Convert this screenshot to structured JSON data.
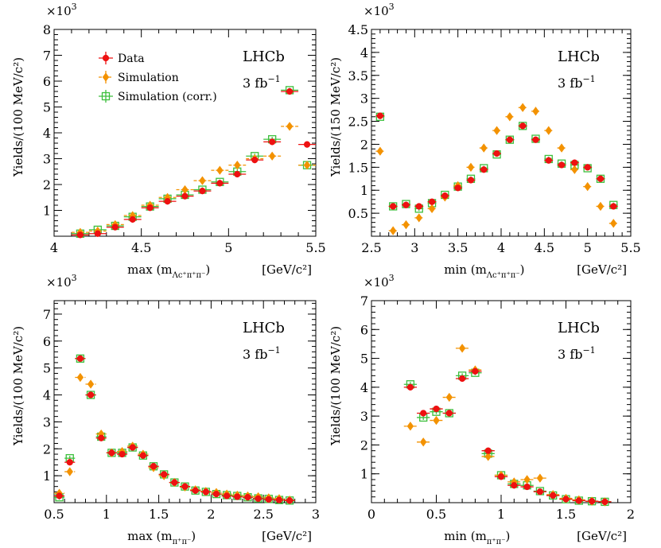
{
  "colors": {
    "data": "#ee1111",
    "sim": "#f39200",
    "simcorr": "#3cbf3c",
    "axis": "#000000"
  },
  "legend": {
    "data": "Data",
    "sim": "Simulation",
    "simcorr": "Simulation (corr.)"
  },
  "chart_data": [
    {
      "type": "scatter",
      "id": "p1",
      "lhcb": "LHCb",
      "lumi": "3  fb",
      "lumi_sup": "−1",
      "multiplier": "×10",
      "multiplier_sup": "3",
      "ylabel": "Yields/(100 MeV/c²)",
      "xlabel_main": "max (m",
      "xlabel_sub": "Λc⁺π⁺π⁻",
      "xlabel_close": ")",
      "xunit": "[GeV/c²]",
      "xlim": [
        4,
        5.5
      ],
      "ylim": [
        0,
        8
      ],
      "xticks": [
        4,
        4.5,
        5,
        5.5
      ],
      "xtick_labels": [
        "4",
        "4.5",
        "5",
        "5.5"
      ],
      "yticks": [
        1,
        2,
        3,
        4,
        5,
        6,
        7,
        8
      ],
      "ytick_labels": [
        "1",
        "2",
        "3",
        "4",
        "5",
        "6",
        "7",
        "8"
      ],
      "show_legend": true,
      "bin_width": 0.1,
      "series": [
        {
          "name": "Data",
          "x": [
            4.15,
            4.25,
            4.35,
            4.45,
            4.55,
            4.65,
            4.75,
            4.85,
            4.95,
            5.05,
            5.15,
            5.25,
            5.35,
            5.45
          ],
          "y": [
            0.05,
            0.1,
            0.35,
            0.65,
            1.1,
            1.35,
            1.55,
            1.75,
            2.05,
            2.4,
            2.95,
            3.65,
            5.6,
            3.55
          ]
        },
        {
          "name": "Simulation",
          "x": [
            4.15,
            4.25,
            4.35,
            4.45,
            4.55,
            4.65,
            4.75,
            4.85,
            4.95,
            5.05,
            5.15,
            5.25,
            5.35,
            5.45
          ],
          "y": [
            0.15,
            0.2,
            0.45,
            0.8,
            1.2,
            1.5,
            1.8,
            2.15,
            2.55,
            2.75,
            3.0,
            3.1,
            4.25,
            2.75
          ]
        },
        {
          "name": "Simulation (corr.)",
          "x": [
            4.15,
            4.25,
            4.35,
            4.45,
            4.55,
            4.65,
            4.75,
            4.85,
            4.95,
            5.05,
            5.15,
            5.25,
            5.35,
            5.45
          ],
          "y": [
            0.1,
            0.25,
            0.4,
            0.75,
            1.15,
            1.45,
            1.6,
            1.8,
            2.1,
            2.5,
            3.1,
            3.75,
            5.65,
            2.75
          ]
        }
      ]
    },
    {
      "type": "scatter",
      "id": "p2",
      "lhcb": "LHCb",
      "lumi": "3  fb",
      "lumi_sup": "−1",
      "multiplier": "×10",
      "multiplier_sup": "3",
      "ylabel": "Yields/(150 MeV/c²)",
      "xlabel_main": "min (m",
      "xlabel_sub": "Λc⁺π⁺π⁻",
      "xlabel_close": ")",
      "xunit": "[GeV/c²]",
      "xlim": [
        2.5,
        5.5
      ],
      "ylim": [
        0,
        4.5
      ],
      "xticks": [
        2.5,
        3,
        3.5,
        4,
        4.5,
        5,
        5.5
      ],
      "xtick_labels": [
        "2.5",
        "3",
        "3.5",
        "4",
        "4.5",
        "5",
        "5.5"
      ],
      "yticks": [
        0.5,
        1,
        1.5,
        2,
        2.5,
        3,
        3.5,
        4,
        4.5
      ],
      "ytick_labels": [
        "0.5",
        "1",
        "1.5",
        "2",
        "2.5",
        "3",
        "3.5",
        "4",
        "4.5"
      ],
      "show_legend": false,
      "bin_width": 0.1,
      "series": [
        {
          "name": "Data",
          "x": [
            2.6,
            2.75,
            2.9,
            3.05,
            3.2,
            3.35,
            3.5,
            3.65,
            3.8,
            3.95,
            4.1,
            4.25,
            4.4,
            4.55,
            4.7,
            4.85,
            5.0,
            5.15,
            5.3
          ],
          "y": [
            2.62,
            0.65,
            0.68,
            0.65,
            0.75,
            0.88,
            1.05,
            1.22,
            1.45,
            1.8,
            2.1,
            2.4,
            2.1,
            1.65,
            1.55,
            1.6,
            1.5,
            1.25,
            0.65
          ]
        },
        {
          "name": "Simulation",
          "x": [
            2.6,
            2.75,
            2.9,
            3.05,
            3.2,
            3.35,
            3.5,
            3.65,
            3.8,
            3.95,
            4.1,
            4.25,
            4.4,
            4.55,
            4.7,
            4.85,
            5.0,
            5.15,
            5.3
          ],
          "y": [
            1.85,
            0.12,
            0.25,
            0.4,
            0.6,
            0.85,
            1.1,
            1.5,
            1.92,
            2.3,
            2.6,
            2.8,
            2.72,
            2.3,
            1.92,
            1.45,
            1.08,
            0.65,
            0.28
          ]
        },
        {
          "name": "Simulation (corr.)",
          "x": [
            2.6,
            2.75,
            2.9,
            3.05,
            3.2,
            3.35,
            3.5,
            3.65,
            3.8,
            3.95,
            4.1,
            4.25,
            4.4,
            4.55,
            4.7,
            4.85,
            5.0,
            5.15,
            5.3
          ],
          "y": [
            2.6,
            0.65,
            0.7,
            0.6,
            0.72,
            0.9,
            1.08,
            1.25,
            1.48,
            1.78,
            2.1,
            2.4,
            2.12,
            1.68,
            1.58,
            1.55,
            1.48,
            1.25,
            0.68
          ]
        }
      ]
    },
    {
      "type": "scatter",
      "id": "p3",
      "lhcb": "LHCb",
      "lumi": "3  fb",
      "lumi_sup": "−1",
      "multiplier": "×10",
      "multiplier_sup": "3",
      "ylabel": "Yields/(100 MeV/c²)",
      "xlabel_main": "max (m",
      "xlabel_sub": "π⁺π⁻",
      "xlabel_close": ")",
      "xunit": "[GeV/c²]",
      "xlim": [
        0.5,
        3
      ],
      "ylim": [
        0,
        7.5
      ],
      "xticks": [
        0.5,
        1,
        1.5,
        2,
        2.5,
        3
      ],
      "xtick_labels": [
        "0.5",
        "1",
        "1.5",
        "2",
        "2.5",
        "3"
      ],
      "yticks": [
        1,
        2,
        3,
        4,
        5,
        6,
        7
      ],
      "ytick_labels": [
        "1",
        "2",
        "3",
        "4",
        "5",
        "6",
        "7"
      ],
      "show_legend": false,
      "bin_width": 0.1,
      "series": [
        {
          "name": "Data",
          "x": [
            0.55,
            0.65,
            0.75,
            0.85,
            0.95,
            1.05,
            1.15,
            1.25,
            1.35,
            1.45,
            1.55,
            1.65,
            1.75,
            1.85,
            1.95,
            2.05,
            2.15,
            2.25,
            2.35,
            2.45,
            2.55,
            2.65,
            2.75
          ],
          "y": [
            0.25,
            1.5,
            5.35,
            4.0,
            2.4,
            1.85,
            1.8,
            2.05,
            1.75,
            1.35,
            1.05,
            0.75,
            0.6,
            0.45,
            0.4,
            0.32,
            0.25,
            0.22,
            0.2,
            0.15,
            0.12,
            0.1,
            0.08
          ]
        },
        {
          "name": "Simulation",
          "x": [
            0.55,
            0.65,
            0.75,
            0.85,
            0.95,
            1.05,
            1.15,
            1.25,
            1.35,
            1.45,
            1.55,
            1.65,
            1.75,
            1.85,
            1.95,
            2.05,
            2.15,
            2.25,
            2.35,
            2.45,
            2.55,
            2.65,
            2.75
          ],
          "y": [
            0.35,
            1.15,
            4.65,
            4.4,
            2.55,
            1.85,
            1.9,
            2.1,
            1.8,
            1.3,
            1.0,
            0.75,
            0.58,
            0.48,
            0.42,
            0.38,
            0.32,
            0.28,
            0.25,
            0.22,
            0.18,
            0.15,
            0.1
          ]
        },
        {
          "name": "Simulation (corr.)",
          "x": [
            0.55,
            0.65,
            0.75,
            0.85,
            0.95,
            1.05,
            1.15,
            1.25,
            1.35,
            1.45,
            1.55,
            1.65,
            1.75,
            1.85,
            1.95,
            2.05,
            2.15,
            2.25,
            2.35,
            2.45,
            2.55,
            2.65,
            2.75
          ],
          "y": [
            0.2,
            1.65,
            5.35,
            4.0,
            2.45,
            1.85,
            1.85,
            2.05,
            1.75,
            1.35,
            1.05,
            0.75,
            0.6,
            0.45,
            0.4,
            0.32,
            0.28,
            0.25,
            0.2,
            0.16,
            0.14,
            0.1,
            0.08
          ]
        }
      ]
    },
    {
      "type": "scatter",
      "id": "p4",
      "lhcb": "LHCb",
      "lumi": "3  fb",
      "lumi_sup": "−1",
      "multiplier": "×10",
      "multiplier_sup": "3",
      "ylabel": "Yields/(100 MeV/c²)",
      "xlabel_main": "min (m",
      "xlabel_sub": "π⁺π⁻",
      "xlabel_close": ")",
      "xunit": "[GeV/c²]",
      "xlim": [
        0,
        2
      ],
      "ylim": [
        0,
        7
      ],
      "xticks": [
        0,
        0.5,
        1,
        1.5,
        2
      ],
      "xtick_labels": [
        "0",
        "0.5",
        "1",
        "1.5",
        "2"
      ],
      "yticks": [
        1,
        2,
        3,
        4,
        5,
        6,
        7
      ],
      "ytick_labels": [
        "1",
        "2",
        "3",
        "4",
        "5",
        "6",
        "7"
      ],
      "show_legend": false,
      "bin_width": 0.1,
      "series": [
        {
          "name": "Data",
          "x": [
            0.3,
            0.4,
            0.5,
            0.6,
            0.7,
            0.8,
            0.9,
            1.0,
            1.1,
            1.2,
            1.3,
            1.4,
            1.5,
            1.6,
            1.7,
            1.8
          ],
          "y": [
            4.0,
            3.1,
            3.25,
            3.1,
            4.3,
            4.55,
            1.8,
            0.9,
            0.6,
            0.55,
            0.38,
            0.25,
            0.12,
            0.07,
            0.05,
            0.03
          ]
        },
        {
          "name": "Simulation",
          "x": [
            0.3,
            0.4,
            0.5,
            0.6,
            0.7,
            0.8,
            0.9,
            1.0,
            1.1,
            1.2,
            1.3,
            1.4,
            1.5,
            1.6,
            1.7,
            1.8
          ],
          "y": [
            2.65,
            2.1,
            2.85,
            3.65,
            5.35,
            4.6,
            1.6,
            0.95,
            0.72,
            0.8,
            0.85,
            0.28,
            0.15,
            0.1,
            0.05,
            0.03
          ]
        },
        {
          "name": "Simulation (corr.)",
          "x": [
            0.3,
            0.4,
            0.5,
            0.6,
            0.7,
            0.8,
            0.9,
            1.0,
            1.1,
            1.2,
            1.3,
            1.4,
            1.5,
            1.6,
            1.7,
            1.8
          ],
          "y": [
            4.1,
            2.95,
            3.15,
            3.1,
            4.4,
            4.5,
            1.7,
            0.95,
            0.65,
            0.6,
            0.4,
            0.25,
            0.12,
            0.07,
            0.05,
            0.03
          ]
        }
      ]
    }
  ]
}
